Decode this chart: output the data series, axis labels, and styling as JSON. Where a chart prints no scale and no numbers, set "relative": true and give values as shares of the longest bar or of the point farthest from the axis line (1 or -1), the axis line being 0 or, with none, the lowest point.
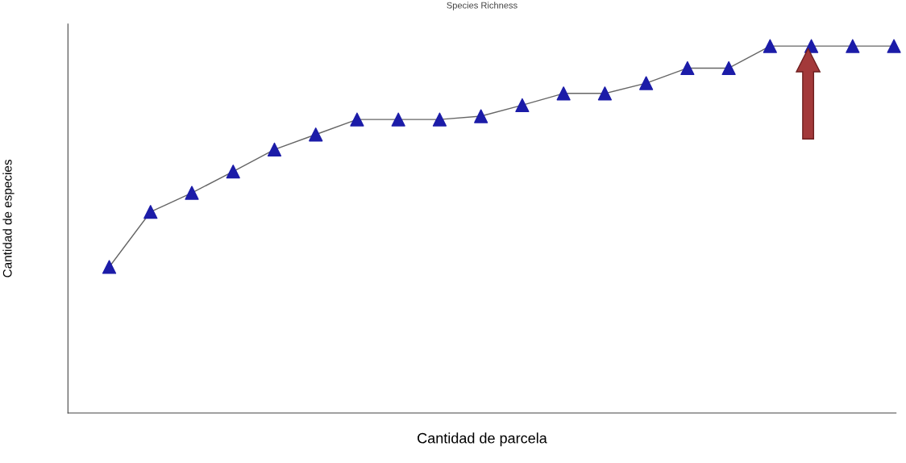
{
  "chart_data": {
    "type": "line",
    "title": "Species Richness",
    "xlabel": "Cantidad de parcela",
    "ylabel": "Cantidad de especies",
    "relative": true,
    "categories": [
      null,
      null,
      null,
      null,
      null,
      null,
      null,
      null,
      null,
      null,
      null,
      null,
      null,
      null,
      null,
      null,
      null,
      null,
      null,
      null
    ],
    "series": [
      {
        "color": "#666666",
        "colors": [
          "#1c1ca8",
          "#1c1ca8",
          "#1c1ca8",
          "#1c1ca8",
          "#1c1ca8",
          "#1c1ca8",
          "#1c1ca8",
          "#1c1ca8",
          "#1c1ca8",
          "#1c1ca8",
          "#1c1ca8",
          "#1c1ca8",
          "#1c1ca8",
          "#1c1ca8",
          "#1c1ca8",
          "#1c1ca8",
          "#1c1ca8",
          "#1c1ca8",
          "#1c1ca8",
          "#1c1ca8"
        ],
        "values": [
          0.398,
          0.548,
          0.6,
          0.658,
          0.718,
          0.759,
          0.8,
          0.8,
          0.8,
          0.809,
          0.839,
          0.871,
          0.871,
          0.899,
          0.94,
          0.94,
          1,
          1,
          1,
          1
        ]
      }
    ],
    "marker": "triangle",
    "line_style": "solid",
    "grid": false
  }
}
